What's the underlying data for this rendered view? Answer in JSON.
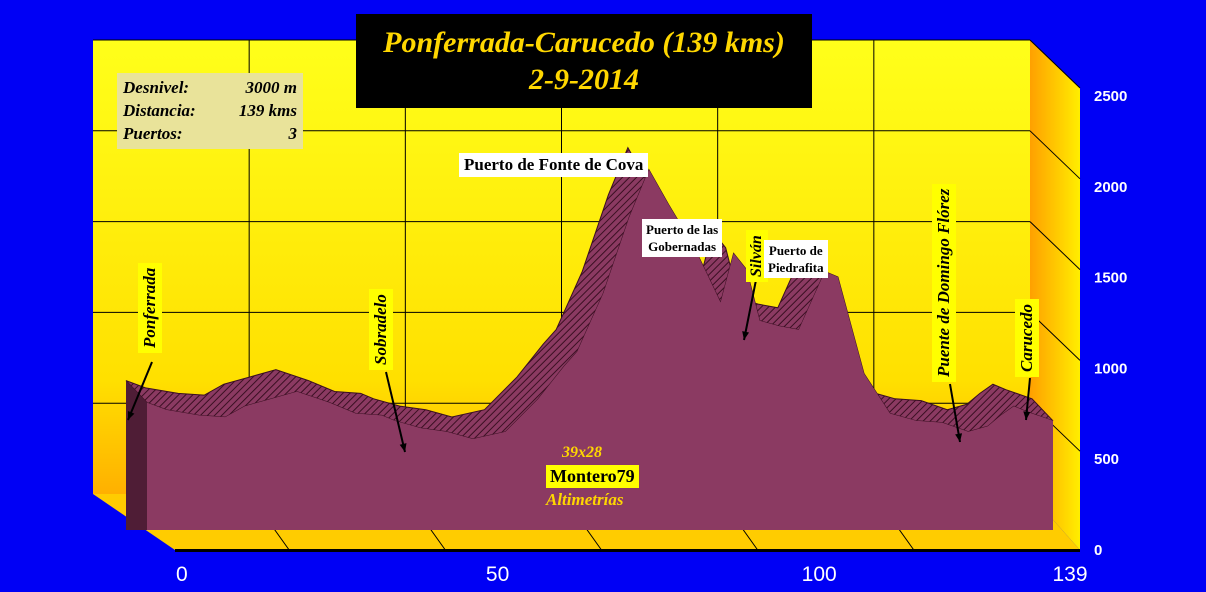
{
  "chart_data": {
    "type": "area",
    "title": "Ponferrada-Carucedo (139 kms)",
    "subtitle": "2-9-2014",
    "x_ticks": [
      "0",
      "50",
      "100",
      "139"
    ],
    "y_ticks": [
      "0",
      "500",
      "1000",
      "1500",
      "2000",
      "2500"
    ],
    "xlim": [
      0,
      139
    ],
    "ylim": [
      0,
      2500
    ],
    "x": [
      0,
      3,
      8,
      12,
      15,
      19,
      23,
      28,
      32,
      36,
      38,
      42,
      46,
      48,
      50,
      55,
      60,
      64,
      66,
      70,
      74,
      77,
      80,
      84,
      88,
      90,
      92,
      94,
      97,
      100,
      104,
      106,
      110,
      114,
      118,
      122,
      126,
      129,
      131,
      133,
      135,
      139
    ],
    "y": [
      700,
      660,
      630,
      620,
      680,
      720,
      760,
      700,
      640,
      630,
      600,
      560,
      540,
      520,
      500,
      540,
      720,
      900,
      980,
      1300,
      1720,
      1980,
      1790,
      1550,
      1250,
      1520,
      1430,
      1150,
      1120,
      1100,
      1420,
      1390,
      860,
      640,
      600,
      590,
      540,
      570,
      630,
      680,
      650,
      600
    ],
    "info": {
      "desnivel_label": "Desnivel:",
      "desnivel_value": "3000 m",
      "distancia_label": "Distancia:",
      "distancia_value": "139 kms",
      "puertos_label": "Puertos:",
      "puertos_value": "3"
    },
    "annotations": {
      "ponferrada": "Ponferrada",
      "sobradelo": "Sobradelo",
      "fonte_de_cova": "Puerto de Fonte de Cova",
      "gobernadas_1": "Puerto de las",
      "gobernadas_2": "Gobernadas",
      "silvan": "Silván",
      "piedrafita_1": "Puerto de",
      "piedrafita_2": "Piedrafita",
      "domingo_florez": "Puente de Domingo Flórez",
      "carucedo": "Carucedo"
    },
    "credits": {
      "grid": "39x28",
      "author": "Montero79",
      "site": "Altimetrías"
    },
    "colors": {
      "background": "#0000f5",
      "wall": "#ffe000",
      "profile": "#8b3a62",
      "profile_top": "#5c1f3d",
      "title_text": "#ffd700"
    }
  }
}
